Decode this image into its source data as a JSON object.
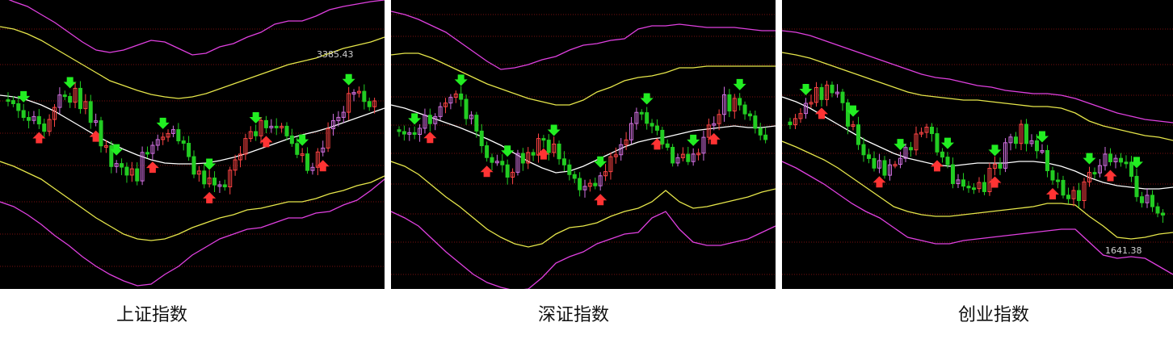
{
  "chart_data": [
    {
      "type": "candlestick",
      "caption": "上证指数",
      "annotation": "3385.43",
      "series": [
        {
          "name": "",
          "color": "#ffffff",
          "values": [
            118,
            120,
            124,
            130,
            138,
            148,
            158,
            168,
            177,
            185,
            192,
            198,
            202,
            203,
            203,
            202,
            199,
            195,
            190,
            184,
            178,
            172,
            167,
            163,
            158,
            152,
            146,
            140,
            134
          ]
        },
        {
          "name": "",
          "color": "#e6e64a",
          "values": [
            33,
            36,
            42,
            50,
            60,
            70,
            80,
            90,
            100,
            106,
            112,
            117,
            120,
            122,
            120,
            116,
            110,
            104,
            98,
            92,
            86,
            80,
            76,
            72,
            66,
            60,
            56,
            52,
            46
          ]
        },
        {
          "name": "",
          "color": "#e6e64a",
          "values": [
            200,
            206,
            214,
            222,
            234,
            246,
            258,
            270,
            280,
            290,
            296,
            298,
            296,
            290,
            282,
            276,
            270,
            266,
            260,
            258,
            254,
            250,
            250,
            246,
            240,
            236,
            230,
            226,
            218
          ]
        },
        {
          "name": "",
          "color": "#e040e0",
          "values": [
            -5,
            2,
            8,
            18,
            28,
            40,
            52,
            62,
            65,
            62,
            56,
            50,
            52,
            60,
            68,
            66,
            58,
            54,
            46,
            40,
            30,
            26,
            26,
            20,
            12,
            8,
            5,
            2,
            0
          ]
        },
        {
          "name": "",
          "color": "#e040e0",
          "values": [
            250,
            256,
            266,
            278,
            292,
            304,
            318,
            330,
            340,
            348,
            354,
            352,
            340,
            330,
            316,
            306,
            296,
            290,
            284,
            282,
            276,
            270,
            270,
            264,
            262,
            254,
            248,
            236,
            222
          ]
        }
      ]
    },
    {
      "type": "candlestick",
      "caption": "深证指数",
      "annotation": "",
      "series": [
        {
          "name": "",
          "color": "#ffffff",
          "values": [
            130,
            134,
            140,
            146,
            152,
            158,
            165,
            172,
            180,
            190,
            200,
            208,
            214,
            212,
            206,
            198,
            190,
            182,
            176,
            172,
            170,
            166,
            162,
            160,
            158,
            156,
            158,
            158,
            156
          ]
        },
        {
          "name": "",
          "color": "#e6e64a",
          "values": [
            68,
            66,
            66,
            72,
            80,
            88,
            96,
            104,
            110,
            116,
            122,
            126,
            130,
            130,
            124,
            114,
            108,
            100,
            96,
            94,
            90,
            84,
            84,
            82,
            82,
            82,
            82,
            82,
            82
          ]
        },
        {
          "name": "",
          "color": "#e040e0",
          "values": [
            14,
            18,
            24,
            32,
            40,
            52,
            64,
            76,
            86,
            84,
            80,
            74,
            70,
            62,
            56,
            54,
            50,
            48,
            36,
            32,
            32,
            30,
            32,
            34,
            34,
            34,
            36,
            38,
            38
          ]
        },
        {
          "name": "",
          "color": "#e6e64a",
          "values": [
            200,
            206,
            216,
            230,
            244,
            256,
            270,
            284,
            294,
            302,
            306,
            302,
            290,
            282,
            280,
            276,
            268,
            262,
            258,
            250,
            236,
            250,
            258,
            256,
            252,
            248,
            244,
            238,
            234
          ]
        },
        {
          "name": "",
          "color": "#e040e0",
          "values": [
            262,
            270,
            280,
            296,
            312,
            326,
            340,
            350,
            356,
            360,
            358,
            344,
            326,
            318,
            312,
            302,
            296,
            290,
            288,
            270,
            262,
            284,
            300,
            304,
            304,
            300,
            296,
            288,
            280
          ]
        }
      ]
    },
    {
      "type": "candlestick",
      "caption": "创业指数",
      "annotation": "1641.38",
      "series": [
        {
          "name": "",
          "color": "#ffffff",
          "values": [
            120,
            126,
            134,
            144,
            154,
            164,
            174,
            182,
            190,
            196,
            200,
            204,
            206,
            204,
            202,
            202,
            202,
            200,
            200,
            202,
            206,
            212,
            220,
            226,
            230,
            232,
            234,
            234,
            232
          ]
        },
        {
          "name": "",
          "color": "#e6e64a",
          "values": [
            65,
            68,
            72,
            78,
            84,
            90,
            96,
            102,
            108,
            114,
            118,
            120,
            122,
            124,
            124,
            126,
            128,
            130,
            132,
            132,
            134,
            140,
            150,
            156,
            160,
            164,
            168,
            170,
            174
          ]
        },
        {
          "name": "",
          "color": "#e6e64a",
          "values": [
            175,
            182,
            190,
            198,
            208,
            220,
            232,
            244,
            256,
            262,
            266,
            268,
            268,
            266,
            264,
            262,
            260,
            258,
            256,
            252,
            252,
            254,
            268,
            280,
            294,
            296,
            294,
            290,
            288
          ]
        },
        {
          "name": "",
          "color": "#e040e0",
          "values": [
            38,
            40,
            44,
            50,
            56,
            62,
            68,
            74,
            80,
            86,
            92,
            96,
            98,
            102,
            106,
            108,
            112,
            114,
            116,
            116,
            118,
            122,
            128,
            134,
            140,
            144,
            148,
            150,
            152
          ]
        },
        {
          "name": "",
          "color": "#e040e0",
          "values": [
            200,
            208,
            218,
            228,
            240,
            252,
            262,
            270,
            282,
            294,
            298,
            302,
            302,
            298,
            296,
            294,
            292,
            290,
            288,
            286,
            284,
            284,
            300,
            316,
            320,
            318,
            320,
            330,
            340
          ]
        }
      ]
    }
  ]
}
